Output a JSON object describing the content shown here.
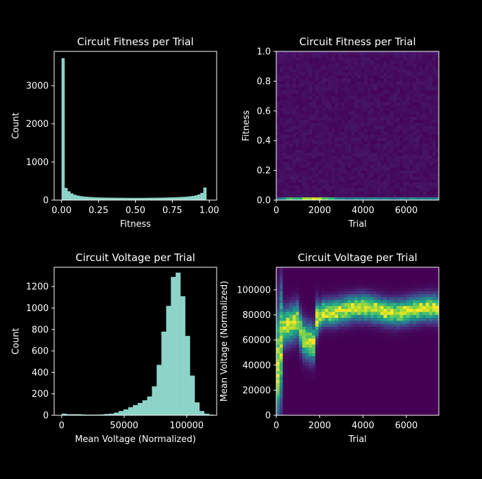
{
  "chart_data": [
    {
      "id": "hist-fitness",
      "type": "bar",
      "title": "Circuit Fitness per Trial",
      "xlabel": "Fitness",
      "ylabel": "Count",
      "xlim": [
        -0.05,
        1.05
      ],
      "ylim": [
        0,
        3900
      ],
      "xticks": [
        0.0,
        0.25,
        0.5,
        0.75,
        1.0
      ],
      "xtick_labels": [
        "0.00",
        "0.25",
        "0.50",
        "0.75",
        "1.00"
      ],
      "yticks": [
        0,
        1000,
        2000,
        3000
      ],
      "ytick_labels": [
        "0",
        "1000",
        "2000",
        "3000"
      ],
      "bin_start": 0.0,
      "bin_width": 0.02,
      "color": "#8dd3c7",
      "values": [
        3720,
        320,
        230,
        175,
        140,
        120,
        105,
        95,
        88,
        82,
        78,
        74,
        70,
        68,
        66,
        64,
        63,
        62,
        61,
        60,
        60,
        59,
        58,
        58,
        57,
        57,
        58,
        58,
        59,
        60,
        61,
        62,
        63,
        64,
        66,
        68,
        70,
        72,
        75,
        78,
        82,
        86,
        92,
        100,
        110,
        125,
        150,
        190,
        330
      ]
    },
    {
      "id": "heat-fitness",
      "type": "heatmap",
      "title": "Circuit Fitness per Trial",
      "xlabel": "Trial",
      "ylabel": "Fitness",
      "xlim": [
        0,
        7500
      ],
      "ylim": [
        0,
        1.0
      ],
      "xticks": [
        0,
        2000,
        4000,
        6000
      ],
      "xtick_labels": [
        "0",
        "2000",
        "4000",
        "6000"
      ],
      "yticks": [
        0.0,
        0.2,
        0.4,
        0.6,
        0.8,
        1.0
      ],
      "ytick_labels": [
        "0.0",
        "0.2",
        "0.4",
        "0.6",
        "0.8",
        "1.0"
      ],
      "nx": 50,
      "ny": 50,
      "colormap": "viridis"
    },
    {
      "id": "hist-voltage",
      "type": "bar",
      "title": "Circuit Voltage per Trial",
      "xlabel": "Mean Voltage (Normalized)",
      "ylabel": "Count",
      "xlim": [
        -6000,
        124000
      ],
      "ylim": [
        0,
        1380
      ],
      "xticks": [
        0,
        50000,
        100000
      ],
      "xtick_labels": [
        "0",
        "50000",
        "100000"
      ],
      "yticks": [
        0,
        200,
        400,
        600,
        800,
        1000,
        1200
      ],
      "ytick_labels": [
        "0",
        "200",
        "400",
        "600",
        "800",
        "1000",
        "1200"
      ],
      "bin_start": 0,
      "bin_width": 3800,
      "color": "#8dd3c7",
      "values": [
        15,
        10,
        10,
        10,
        8,
        6,
        6,
        6,
        8,
        12,
        15,
        25,
        40,
        55,
        75,
        95,
        115,
        140,
        175,
        270,
        470,
        780,
        1020,
        1290,
        1330,
        1110,
        740,
        370,
        120,
        40,
        15,
        6
      ]
    },
    {
      "id": "heat-voltage",
      "type": "heatmap",
      "title": "Circuit Voltage per Trial",
      "xlabel": "Trial",
      "ylabel": "Mean Voltage (Normalized)",
      "xlim": [
        0,
        7500
      ],
      "ylim": [
        0,
        118000
      ],
      "xticks": [
        0,
        2000,
        4000,
        6000
      ],
      "xtick_labels": [
        "0",
        "2000",
        "4000",
        "6000"
      ],
      "yticks": [
        0,
        20000,
        40000,
        60000,
        80000,
        100000
      ],
      "ytick_labels": [
        "0",
        "20000",
        "40000",
        "60000",
        "80000",
        "100000"
      ],
      "nx": 50,
      "ny": 50,
      "colormap": "viridis"
    }
  ]
}
